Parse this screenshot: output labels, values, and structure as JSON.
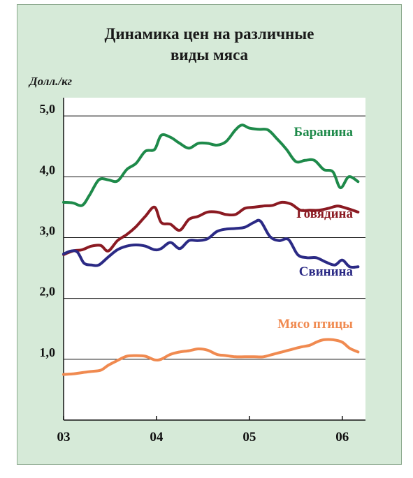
{
  "chart_data": {
    "type": "line",
    "title_lines": [
      "Динамика цен на различные",
      "виды мяса"
    ],
    "ylabel": "Долл./кг",
    "xlabel": "",
    "ylim": [
      0,
      5.3
    ],
    "xlim": [
      2003.0,
      2006.25
    ],
    "y_ticks": [
      1.0,
      2.0,
      3.0,
      4.0,
      5.0
    ],
    "y_tick_labels": [
      "1,0",
      "2,0",
      "3,0",
      "4,0",
      "5,0"
    ],
    "x_ticks": [
      2003,
      2004,
      2005,
      2006
    ],
    "x_tick_labels": [
      "03",
      "04",
      "05",
      "06"
    ],
    "grid": "horizontal",
    "series": [
      {
        "name": "Баранина",
        "color": "#1e8a4a",
        "points": [
          [
            2003.0,
            3.58
          ],
          [
            2003.1,
            3.57
          ],
          [
            2003.2,
            3.53
          ],
          [
            2003.28,
            3.7
          ],
          [
            2003.38,
            3.95
          ],
          [
            2003.48,
            3.95
          ],
          [
            2003.58,
            3.93
          ],
          [
            2003.68,
            4.12
          ],
          [
            2003.78,
            4.22
          ],
          [
            2003.88,
            4.42
          ],
          [
            2003.98,
            4.45
          ],
          [
            2004.05,
            4.68
          ],
          [
            2004.15,
            4.65
          ],
          [
            2004.25,
            4.55
          ],
          [
            2004.35,
            4.47
          ],
          [
            2004.45,
            4.55
          ],
          [
            2004.55,
            4.55
          ],
          [
            2004.65,
            4.52
          ],
          [
            2004.75,
            4.58
          ],
          [
            2004.85,
            4.77
          ],
          [
            2004.92,
            4.85
          ],
          [
            2005.0,
            4.8
          ],
          [
            2005.1,
            4.78
          ],
          [
            2005.2,
            4.77
          ],
          [
            2005.3,
            4.62
          ],
          [
            2005.4,
            4.45
          ],
          [
            2005.5,
            4.25
          ],
          [
            2005.6,
            4.27
          ],
          [
            2005.7,
            4.27
          ],
          [
            2005.8,
            4.12
          ],
          [
            2005.9,
            4.08
          ],
          [
            2005.98,
            3.82
          ],
          [
            2006.07,
            4.0
          ],
          [
            2006.17,
            3.92
          ]
        ]
      },
      {
        "name": "Говядина",
        "color": "#8b1a22",
        "points": [
          [
            2003.0,
            2.72
          ],
          [
            2003.1,
            2.78
          ],
          [
            2003.2,
            2.8
          ],
          [
            2003.3,
            2.86
          ],
          [
            2003.4,
            2.87
          ],
          [
            2003.48,
            2.78
          ],
          [
            2003.58,
            2.95
          ],
          [
            2003.68,
            3.05
          ],
          [
            2003.78,
            3.18
          ],
          [
            2003.88,
            3.35
          ],
          [
            2003.98,
            3.5
          ],
          [
            2004.05,
            3.25
          ],
          [
            2004.15,
            3.22
          ],
          [
            2004.25,
            3.12
          ],
          [
            2004.35,
            3.3
          ],
          [
            2004.45,
            3.35
          ],
          [
            2004.55,
            3.42
          ],
          [
            2004.65,
            3.42
          ],
          [
            2004.75,
            3.38
          ],
          [
            2004.85,
            3.38
          ],
          [
            2004.95,
            3.48
          ],
          [
            2005.05,
            3.5
          ],
          [
            2005.15,
            3.52
          ],
          [
            2005.25,
            3.53
          ],
          [
            2005.35,
            3.58
          ],
          [
            2005.45,
            3.55
          ],
          [
            2005.55,
            3.45
          ],
          [
            2005.65,
            3.45
          ],
          [
            2005.75,
            3.45
          ],
          [
            2005.85,
            3.48
          ],
          [
            2005.95,
            3.52
          ],
          [
            2006.05,
            3.48
          ],
          [
            2006.17,
            3.42
          ]
        ]
      },
      {
        "name": "Свинина",
        "color": "#2b2a85",
        "points": [
          [
            2003.0,
            2.73
          ],
          [
            2003.08,
            2.78
          ],
          [
            2003.15,
            2.76
          ],
          [
            2003.22,
            2.58
          ],
          [
            2003.3,
            2.55
          ],
          [
            2003.38,
            2.55
          ],
          [
            2003.48,
            2.68
          ],
          [
            2003.58,
            2.8
          ],
          [
            2003.68,
            2.86
          ],
          [
            2003.78,
            2.88
          ],
          [
            2003.88,
            2.86
          ],
          [
            2003.98,
            2.8
          ],
          [
            2004.05,
            2.82
          ],
          [
            2004.15,
            2.92
          ],
          [
            2004.25,
            2.82
          ],
          [
            2004.35,
            2.95
          ],
          [
            2004.45,
            2.95
          ],
          [
            2004.55,
            2.98
          ],
          [
            2004.65,
            3.1
          ],
          [
            2004.75,
            3.14
          ],
          [
            2004.85,
            3.15
          ],
          [
            2004.95,
            3.17
          ],
          [
            2005.05,
            3.25
          ],
          [
            2005.12,
            3.27
          ],
          [
            2005.22,
            3.02
          ],
          [
            2005.32,
            2.95
          ],
          [
            2005.42,
            2.97
          ],
          [
            2005.52,
            2.72
          ],
          [
            2005.62,
            2.67
          ],
          [
            2005.72,
            2.67
          ],
          [
            2005.82,
            2.6
          ],
          [
            2005.92,
            2.55
          ],
          [
            2006.0,
            2.63
          ],
          [
            2006.08,
            2.52
          ],
          [
            2006.17,
            2.52
          ]
        ]
      },
      {
        "name": "Мясо птицы",
        "color": "#f08a50",
        "points": [
          [
            2003.0,
            0.75
          ],
          [
            2003.1,
            0.76
          ],
          [
            2003.2,
            0.78
          ],
          [
            2003.3,
            0.8
          ],
          [
            2003.4,
            0.82
          ],
          [
            2003.48,
            0.9
          ],
          [
            2003.58,
            0.98
          ],
          [
            2003.68,
            1.05
          ],
          [
            2003.78,
            1.06
          ],
          [
            2003.88,
            1.05
          ],
          [
            2003.98,
            0.99
          ],
          [
            2004.05,
            1.0
          ],
          [
            2004.15,
            1.08
          ],
          [
            2004.25,
            1.12
          ],
          [
            2004.35,
            1.14
          ],
          [
            2004.45,
            1.17
          ],
          [
            2004.55,
            1.15
          ],
          [
            2004.65,
            1.08
          ],
          [
            2004.75,
            1.06
          ],
          [
            2004.85,
            1.04
          ],
          [
            2004.95,
            1.04
          ],
          [
            2005.05,
            1.04
          ],
          [
            2005.15,
            1.04
          ],
          [
            2005.25,
            1.08
          ],
          [
            2005.35,
            1.12
          ],
          [
            2005.45,
            1.16
          ],
          [
            2005.55,
            1.2
          ],
          [
            2005.65,
            1.23
          ],
          [
            2005.72,
            1.28
          ],
          [
            2005.8,
            1.32
          ],
          [
            2005.9,
            1.32
          ],
          [
            2006.0,
            1.28
          ],
          [
            2006.08,
            1.18
          ],
          [
            2006.17,
            1.12
          ]
        ]
      }
    ],
    "series_labels": [
      "Баранина",
      "Говядина",
      "Свинина",
      "Мясо птицы"
    ]
  }
}
